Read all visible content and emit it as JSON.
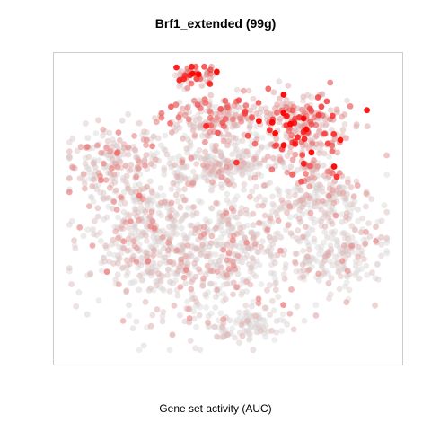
{
  "chart_data": {
    "type": "scatter",
    "title": "Brf1_extended (99g)",
    "xlabel": "",
    "ylabel": "",
    "legend_title": "Gene set activity (AUC)",
    "axes_visible": false,
    "grid": false,
    "panel_border": true,
    "xlim": [
      -40,
      40
    ],
    "ylim": [
      -40,
      40
    ],
    "color_scale": {
      "low": "#d9d9d9",
      "high": "#ff0000"
    },
    "clusters": [
      {
        "cx": -27,
        "cy": 12,
        "rx": 11,
        "ry": 9,
        "n": 180,
        "activity": 0.22
      },
      {
        "cx": -20,
        "cy": -8,
        "rx": 15,
        "ry": 18,
        "n": 420,
        "activity": 0.14
      },
      {
        "cx": -4,
        "cy": 24,
        "rx": 10,
        "ry": 6,
        "n": 170,
        "activity": 0.35
      },
      {
        "cx": -2,
        "cy": 12,
        "rx": 14,
        "ry": 6,
        "n": 220,
        "activity": 0.13
      },
      {
        "cx": 0,
        "cy": -12,
        "rx": 16,
        "ry": 18,
        "n": 450,
        "activity": 0.18
      },
      {
        "cx": 17,
        "cy": 23,
        "rx": 12,
        "ry": 7,
        "n": 240,
        "activity": 0.62
      },
      {
        "cx": 20,
        "cy": 12,
        "rx": 8,
        "ry": 4,
        "n": 80,
        "activity": 0.48
      },
      {
        "cx": 22,
        "cy": 2,
        "rx": 12,
        "ry": 6,
        "n": 170,
        "activity": 0.12
      },
      {
        "cx": 26,
        "cy": -12,
        "rx": 10,
        "ry": 10,
        "n": 190,
        "activity": 0.1
      },
      {
        "cx": -8,
        "cy": 36,
        "rx": 5,
        "ry": 2.5,
        "n": 60,
        "activity": 0.58
      },
      {
        "cx": 5,
        "cy": -32,
        "rx": 9,
        "ry": 4,
        "n": 90,
        "activity": 0.08
      }
    ]
  }
}
